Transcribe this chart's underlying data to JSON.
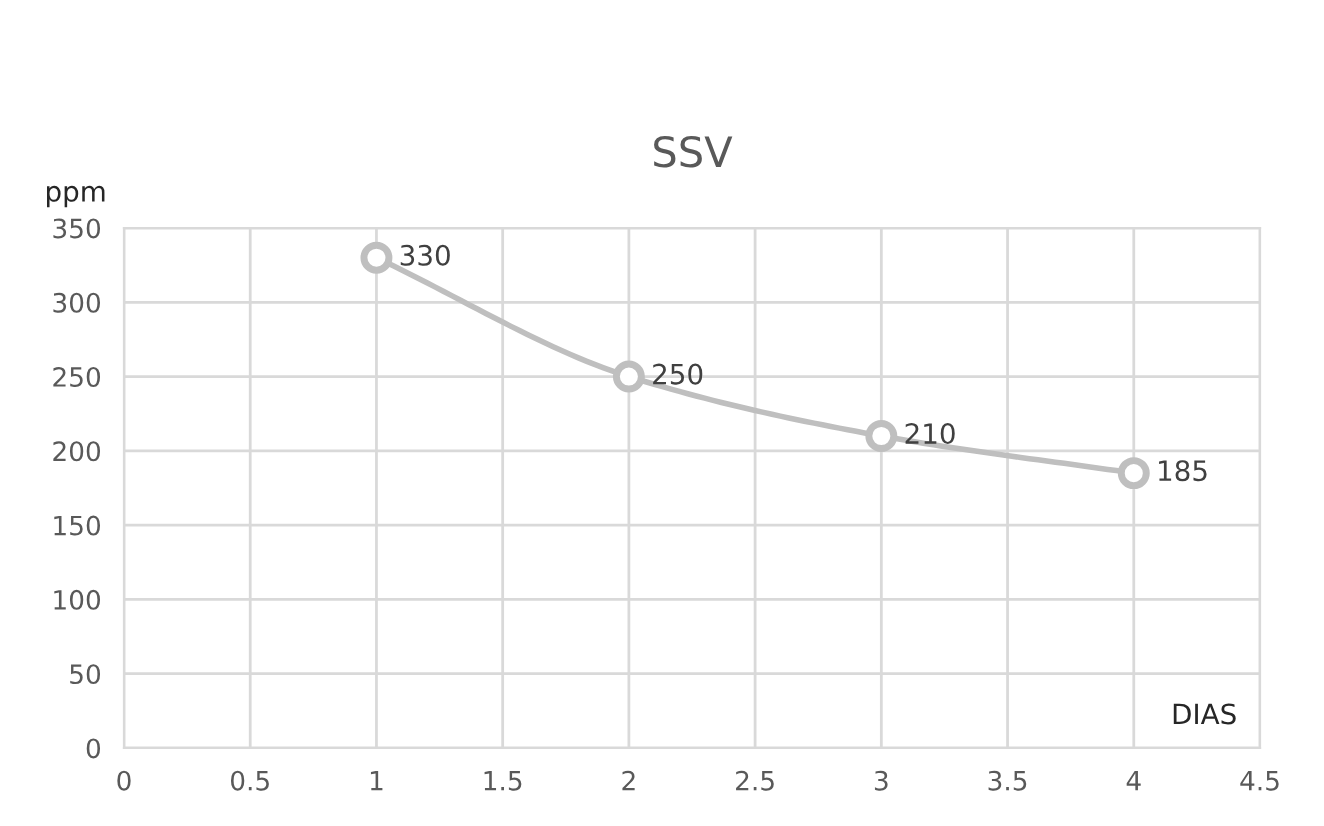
{
  "chart_data": {
    "type": "line",
    "title": "SSV",
    "xlabel": "DIAS",
    "ylabel": "ppm",
    "x": [
      1,
      2,
      3,
      4
    ],
    "series": [
      {
        "color": "#bfbfbf",
        "values": [
          330,
          250,
          210,
          185
        ]
      }
    ],
    "xlim": [
      0,
      4.5
    ],
    "xticks": [
      0,
      0.5,
      1,
      1.5,
      2,
      2.5,
      3,
      3.5,
      4,
      4.5
    ],
    "ylim": [
      0,
      350
    ],
    "yticks": [
      0,
      50,
      100,
      150,
      200,
      250,
      300,
      350
    ],
    "grid": true,
    "marker": "circle",
    "line_style": "solid",
    "data_labels": true
  }
}
